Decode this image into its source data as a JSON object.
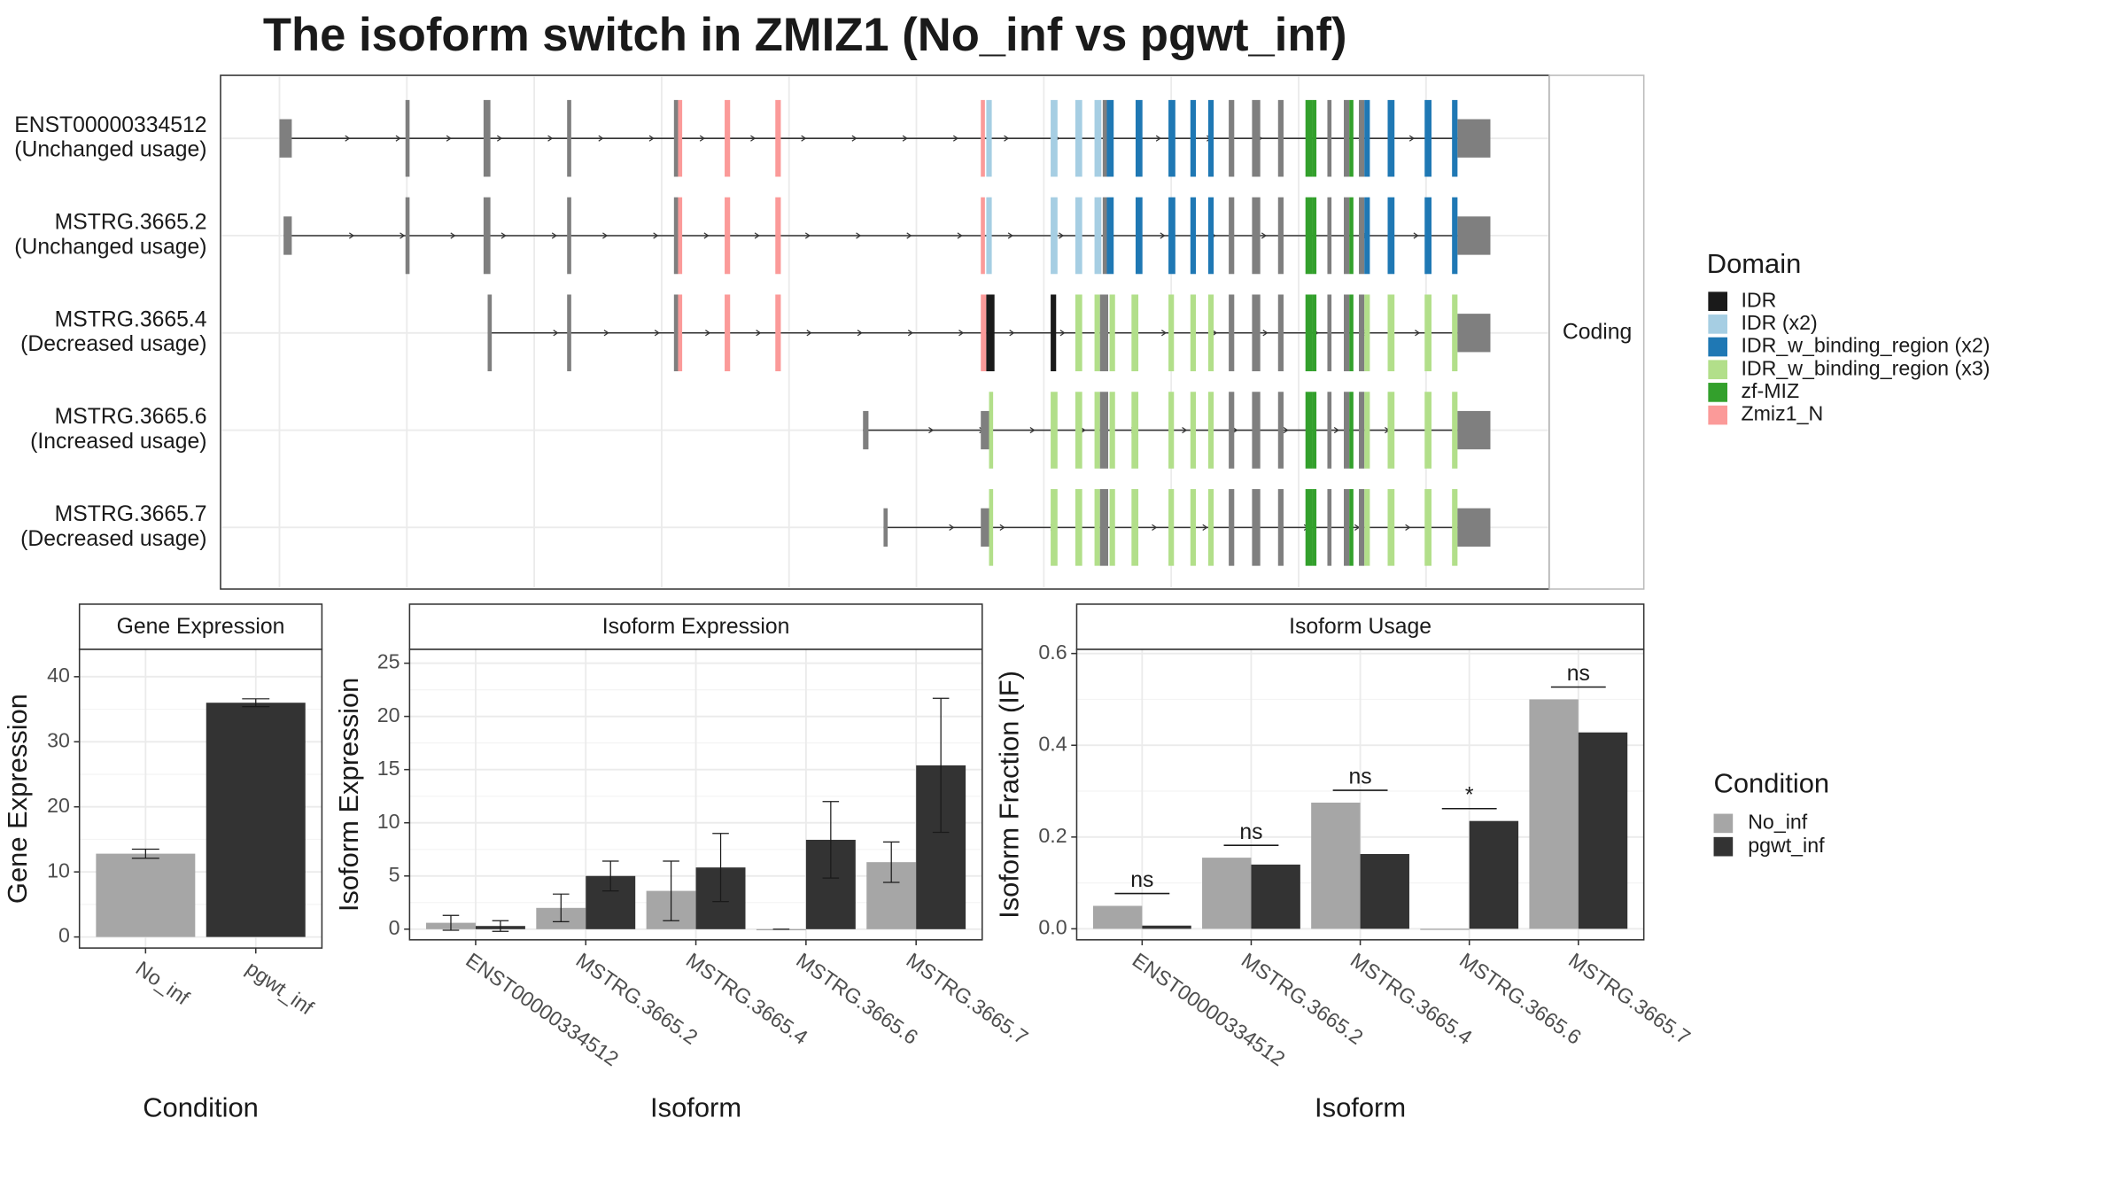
{
  "title": "The isoform switch in ZMIZ1 (No_inf vs pgwt_inf)",
  "transcript_plot": {
    "transcripts": [
      {
        "name": "ENST00000334512",
        "usage": "(Unchanged usage)"
      },
      {
        "name": "MSTRG.3665.2",
        "usage": "(Unchanged usage)"
      },
      {
        "name": "MSTRG.3665.4",
        "usage": "(Decreased usage)"
      },
      {
        "name": "MSTRG.3665.6",
        "usage": "(Increased usage)"
      },
      {
        "name": "MSTRG.3665.7",
        "usage": "(Decreased usage)"
      }
    ],
    "facet_label": "Coding",
    "legend_title": "Domain",
    "domains": [
      {
        "name": "IDR",
        "color": "#1a1a1a"
      },
      {
        "name": "IDR (x2)",
        "color": "#a6cee3"
      },
      {
        "name": "IDR_w_binding_region (x2)",
        "color": "#1f78b4"
      },
      {
        "name": "IDR_w_binding_region (x3)",
        "color": "#b2df8a"
      },
      {
        "name": "zf-MIZ",
        "color": "#33a02c"
      },
      {
        "name": "Zmiz1_N",
        "color": "#fb9a99"
      }
    ]
  },
  "chart_data": [
    {
      "type": "bar",
      "title": "Gene Expression",
      "x_label": "Condition",
      "y_label": "Gene Expression",
      "categories": [
        "No_inf",
        "pgwt_inf"
      ],
      "values": [
        12.8,
        36.0
      ],
      "errors": [
        0.7,
        0.6
      ],
      "colors": [
        "#a6a6a6",
        "#333333"
      ],
      "ylim": [
        -1.7,
        44.2
      ],
      "yticks": [
        0,
        10,
        20,
        30,
        40
      ],
      "grid": true
    },
    {
      "type": "grouped_bar",
      "title": "Isoform Expression",
      "x_label": "Isoform",
      "y_label": "Isoform Expression",
      "categories": [
        "ENST00000334512",
        "MSTRG.3665.2",
        "MSTRG.3665.4",
        "MSTRG.3665.6",
        "MSTRG.3665.7"
      ],
      "series": [
        {
          "name": "No_inf",
          "color": "#a6a6a6",
          "values": [
            0.6,
            2.0,
            3.6,
            0.0,
            6.3
          ],
          "errors": [
            0.7,
            1.3,
            2.8,
            0.0,
            1.9
          ]
        },
        {
          "name": "pgwt_inf",
          "color": "#333333",
          "values": [
            0.3,
            5.0,
            5.8,
            8.4,
            15.4
          ],
          "errors": [
            0.5,
            1.4,
            3.2,
            3.6,
            6.3
          ]
        }
      ],
      "ylim": [
        -1.0,
        26.3
      ],
      "yticks": [
        0,
        5,
        10,
        15,
        20,
        25
      ],
      "grid": true
    },
    {
      "type": "grouped_bar",
      "title": "Isoform Usage",
      "x_label": "Isoform",
      "y_label": "Isoform Fraction (IF)",
      "legend_title": "Condition",
      "categories": [
        "ENST00000334512",
        "MSTRG.3665.2",
        "MSTRG.3665.4",
        "MSTRG.3665.6",
        "MSTRG.3665.7"
      ],
      "series": [
        {
          "name": "No_inf",
          "color": "#a6a6a6",
          "values": [
            0.05,
            0.155,
            0.275,
            0.0,
            0.5
          ]
        },
        {
          "name": "pgwt_inf",
          "color": "#333333",
          "values": [
            0.007,
            0.14,
            0.163,
            0.235,
            0.428
          ]
        }
      ],
      "annotations": [
        "ns",
        "ns",
        "ns",
        "*",
        "ns"
      ],
      "ylim": [
        -0.024,
        0.609
      ],
      "yticks": [
        {
          "value": 0,
          "label": "0.0"
        },
        0.2,
        0.4,
        0.6
      ],
      "grid": true
    }
  ]
}
